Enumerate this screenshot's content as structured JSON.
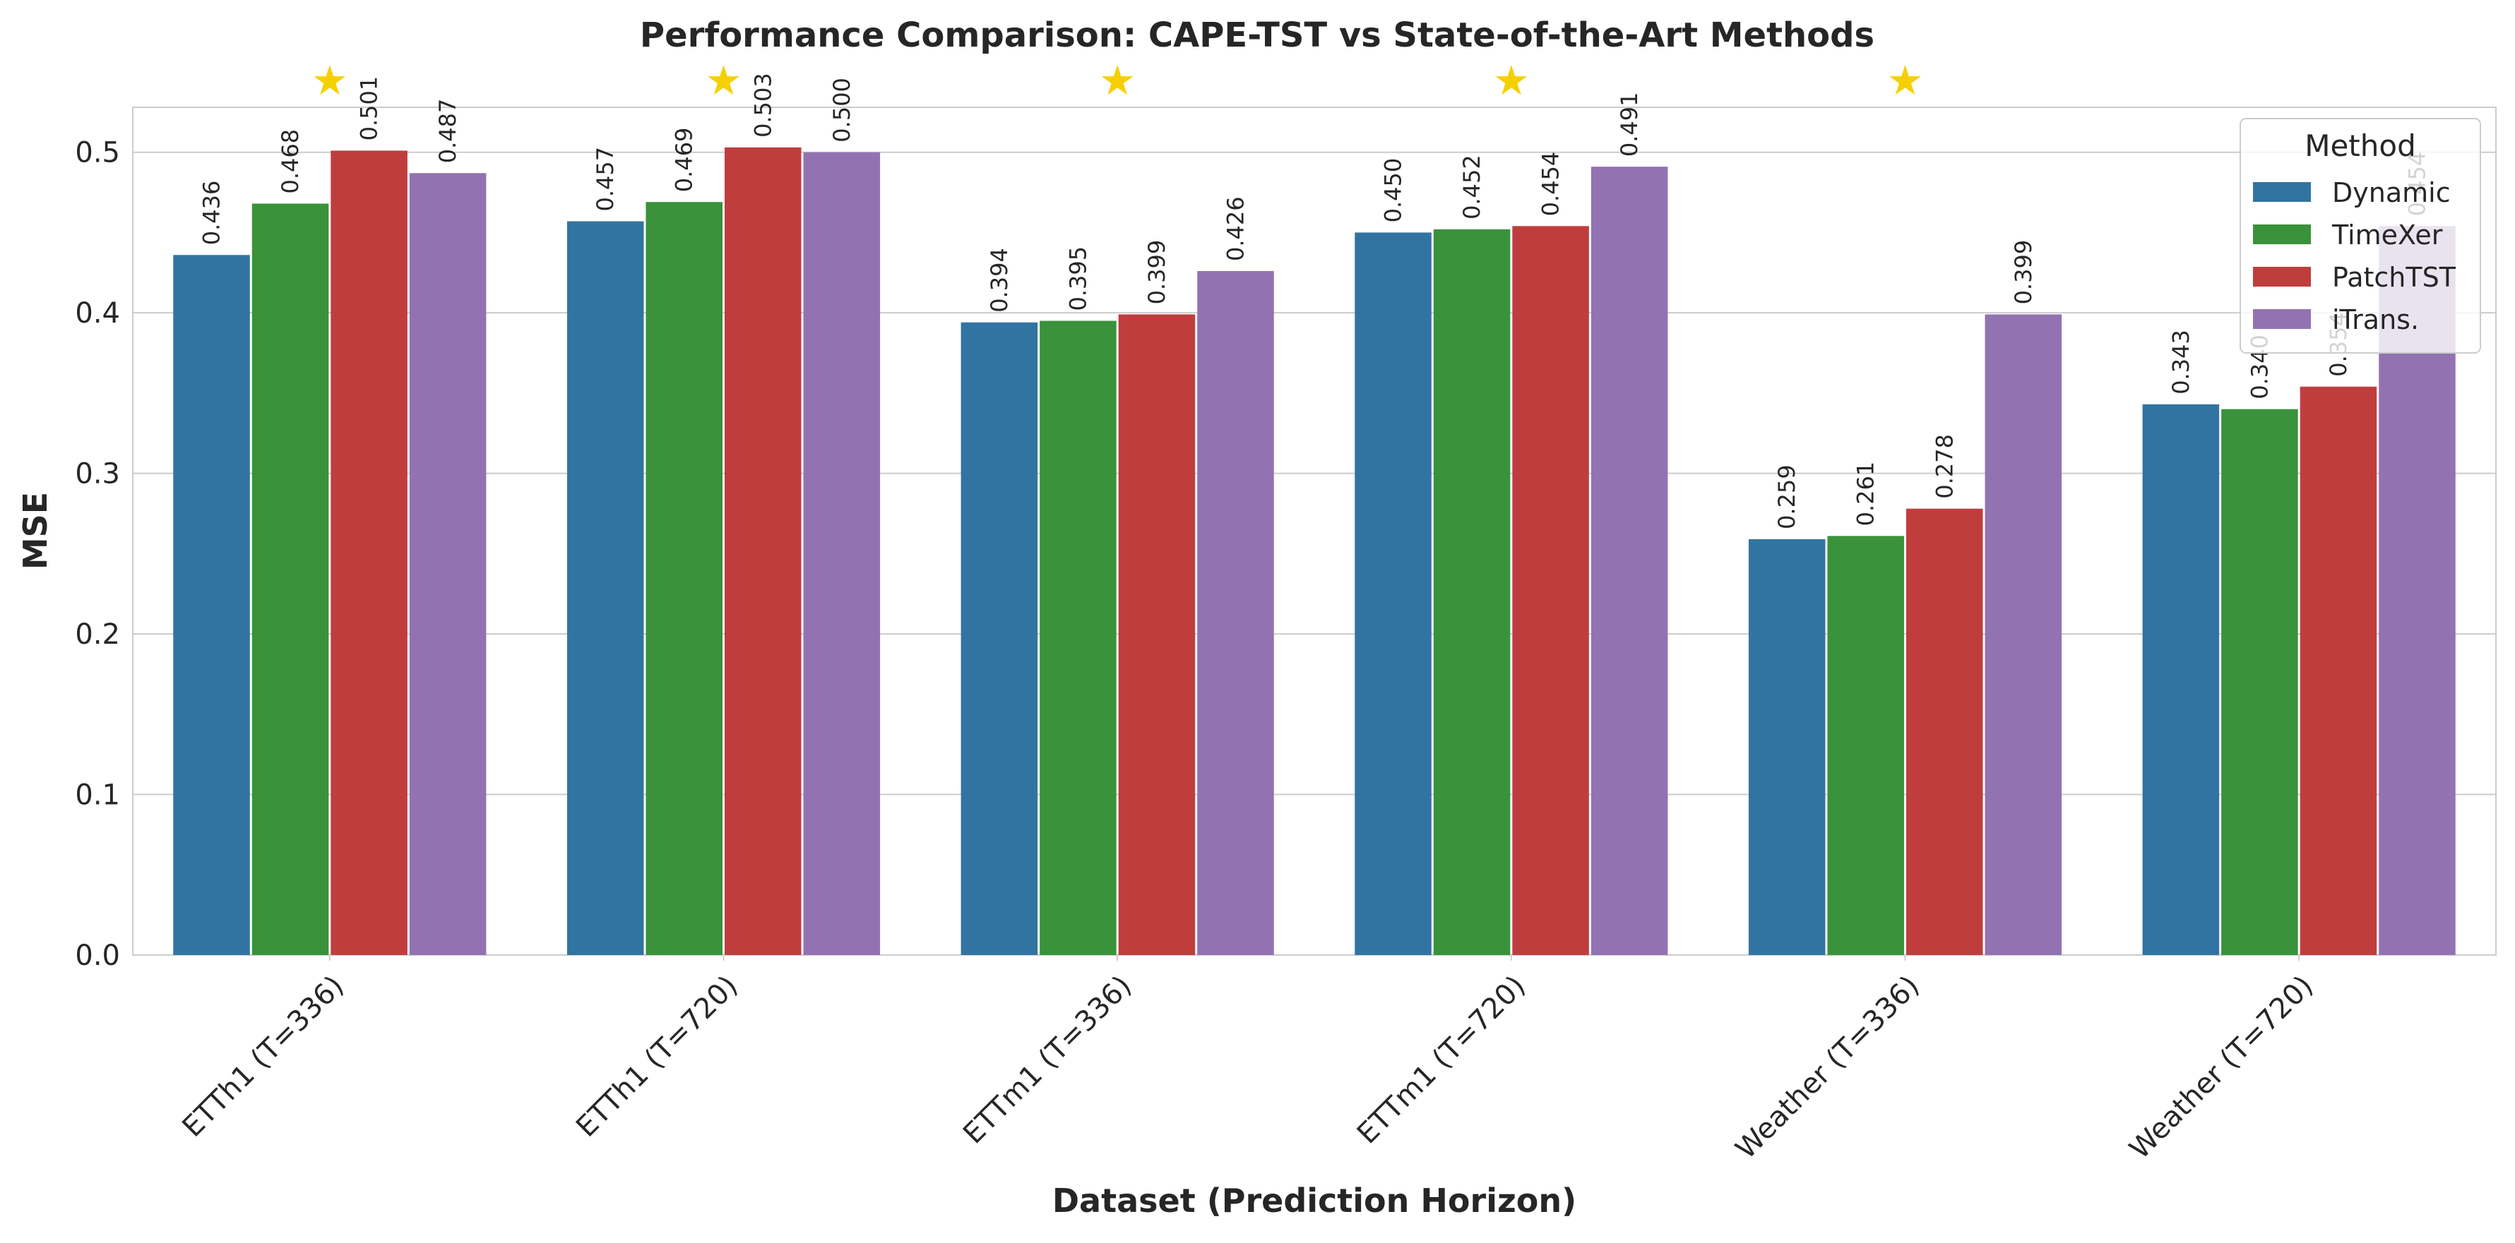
{
  "chart_data": {
    "type": "bar",
    "title": "Performance Comparison: CAPE-TST vs State-of-the-Art Methods",
    "xlabel": "Dataset (Prediction Horizon)",
    "ylabel": "MSE",
    "ylim": [
      0,
      0.528
    ],
    "yticks": [
      "0.0",
      "0.1",
      "0.2",
      "0.3",
      "0.4",
      "0.5"
    ],
    "grid": true,
    "legend": {
      "title": "Method",
      "placement": "top-right"
    },
    "categories": [
      "ETTh1 (T=336)",
      "ETTh1 (T=720)",
      "ETTm1 (T=336)",
      "ETTm1 (T=720)",
      "Weather (T=336)",
      "Weather (T=720)"
    ],
    "series": [
      {
        "name": "Dynamic",
        "color": "#3274a1",
        "values": [
          0.436,
          0.457,
          0.394,
          0.45,
          0.259,
          0.343
        ],
        "labels": [
          "0.436",
          "0.457",
          "0.394",
          "0.450",
          "0.259",
          "0.343"
        ]
      },
      {
        "name": "TimeXer",
        "color": "#3a923a",
        "values": [
          0.468,
          0.469,
          0.395,
          0.452,
          0.261,
          0.34
        ],
        "labels": [
          "0.468",
          "0.469",
          "0.395",
          "0.452",
          "0.261",
          "0.340"
        ]
      },
      {
        "name": "PatchTST",
        "color": "#c03d3e",
        "values": [
          0.501,
          0.503,
          0.399,
          0.454,
          0.278,
          0.354
        ],
        "labels": [
          "0.501",
          "0.503",
          "0.399",
          "0.454",
          "0.278",
          "0.354"
        ]
      },
      {
        "name": "iTrans.",
        "color": "#9372b2",
        "values": [
          0.487,
          0.5,
          0.426,
          0.491,
          0.399,
          0.454
        ],
        "labels": [
          "0.487",
          "0.500",
          "0.426",
          "0.491",
          "0.399",
          "0.454"
        ]
      }
    ],
    "star_marker": {
      "symbol": "★",
      "color": "#f5d000",
      "categories": [
        0,
        1,
        2,
        3,
        4
      ]
    }
  }
}
